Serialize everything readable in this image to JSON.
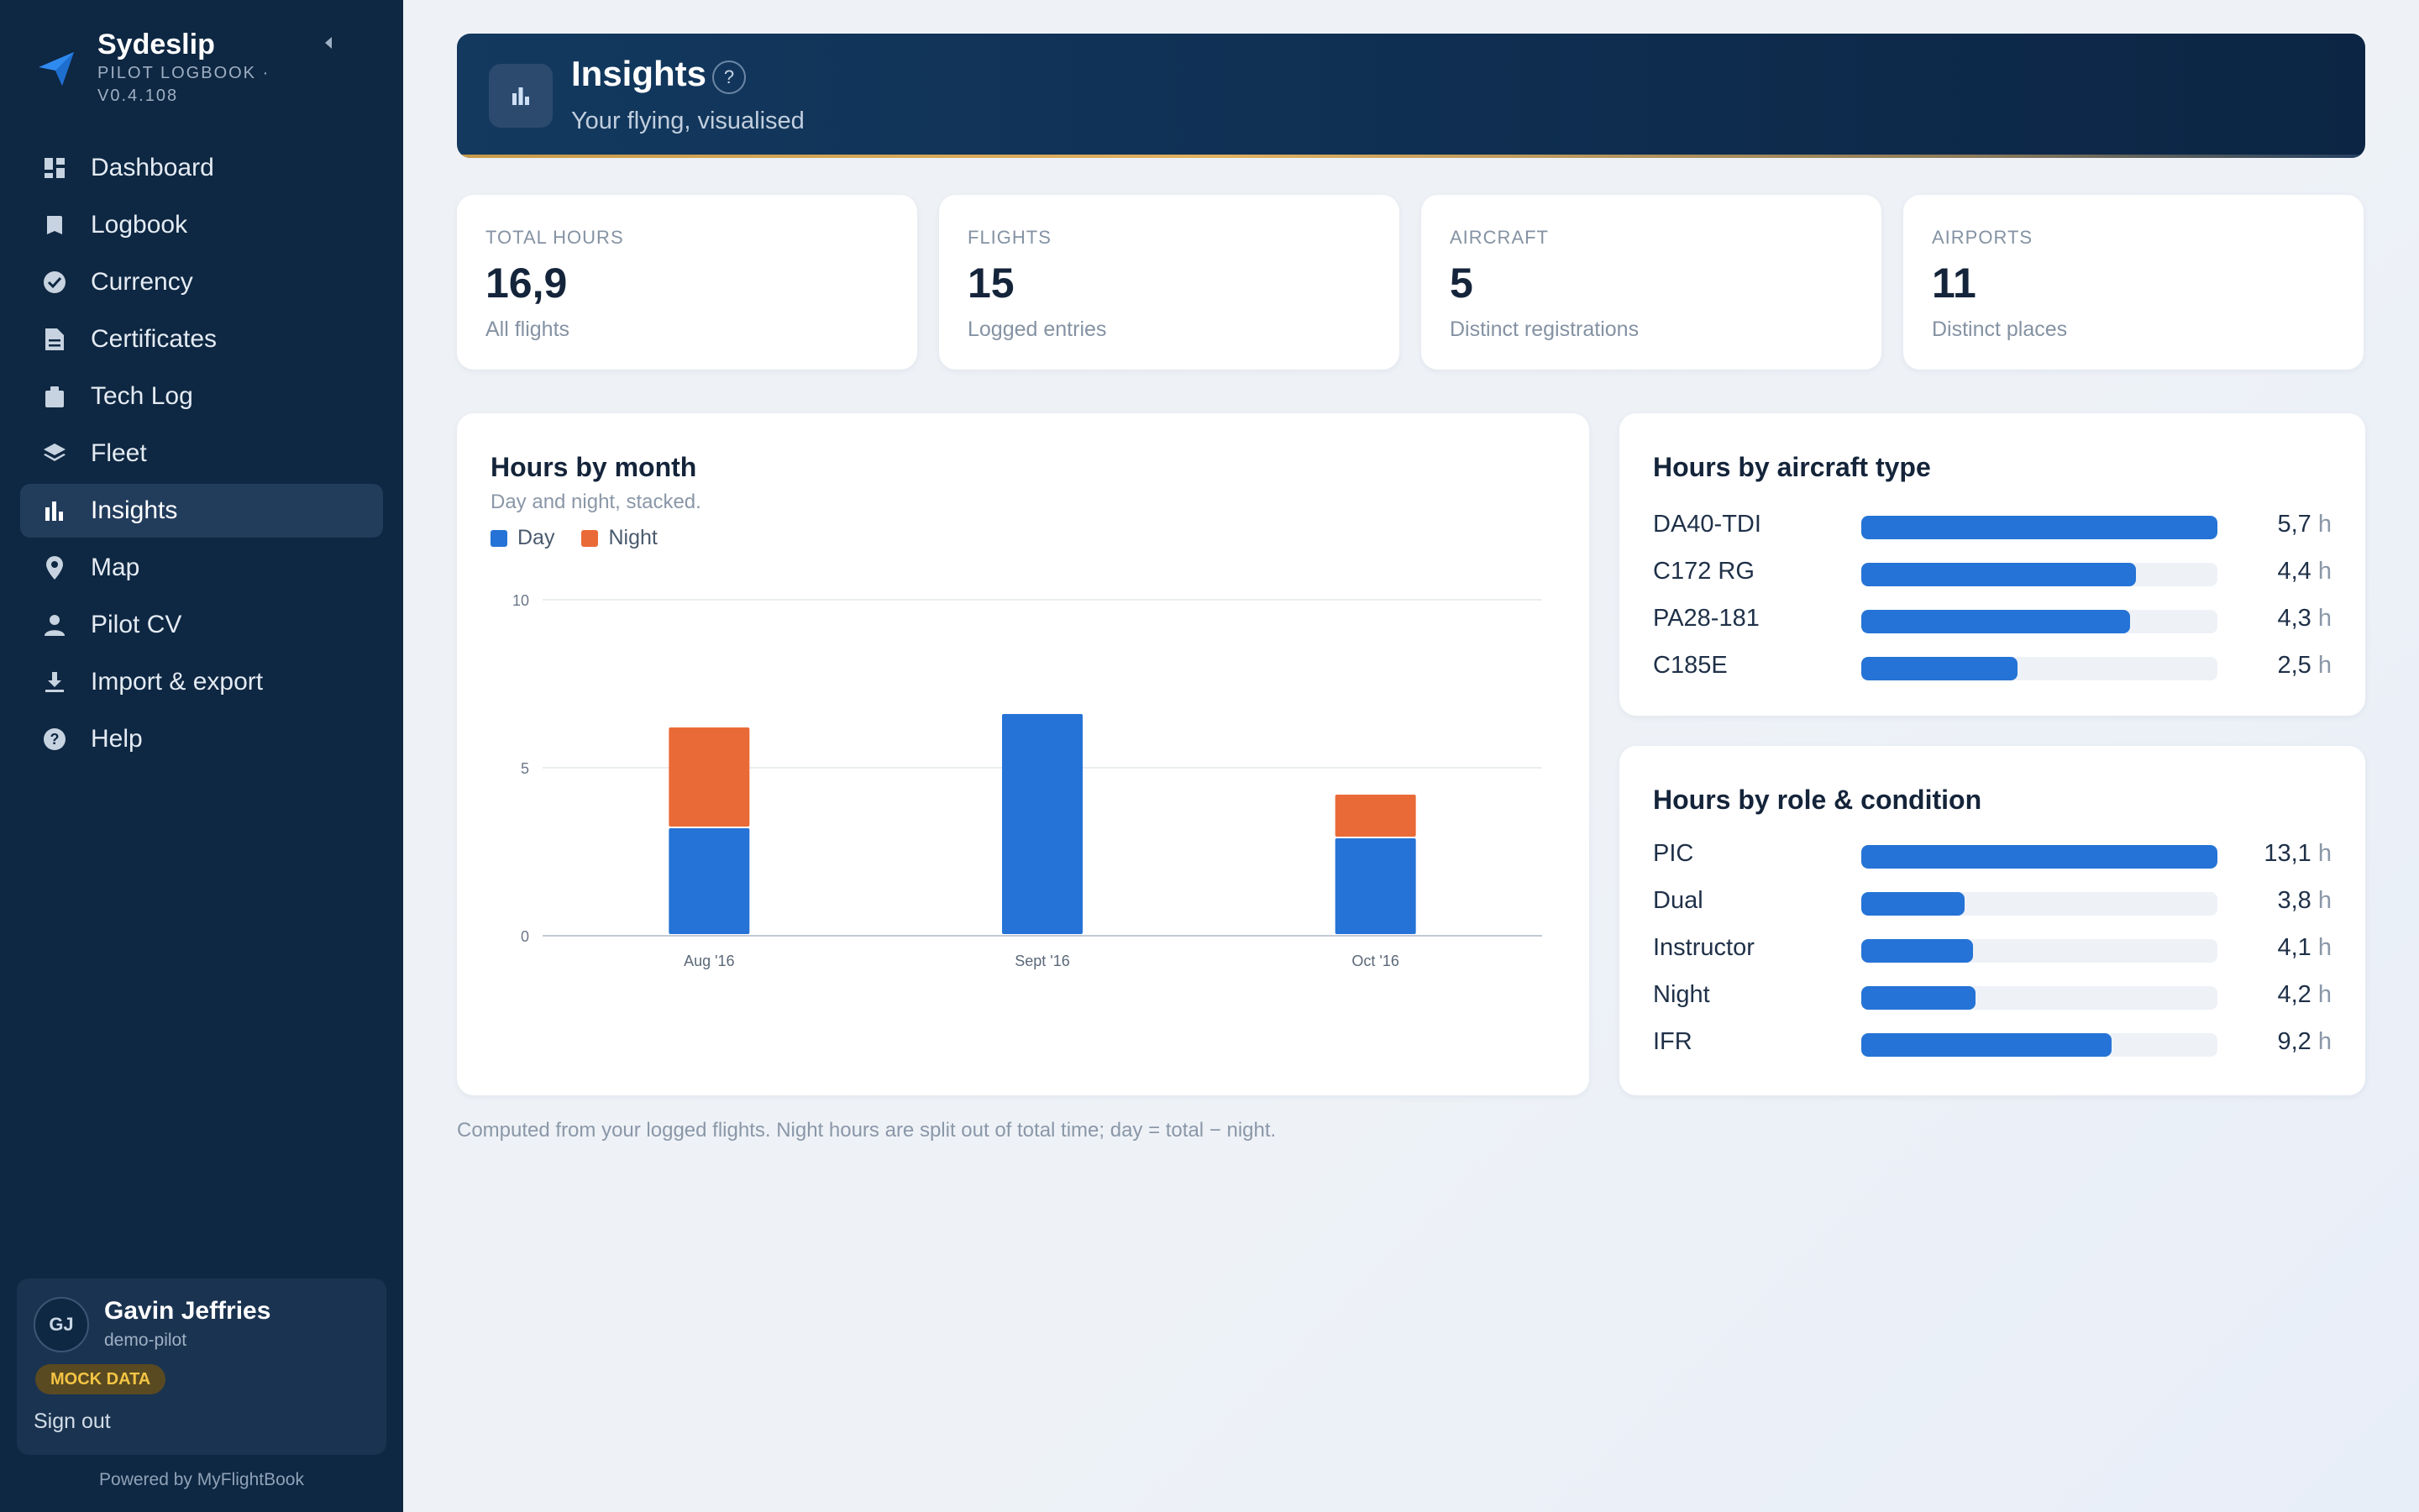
{
  "app": {
    "name": "Sydeslip",
    "subtitle": "PILOT LOGBOOK · V0.4.108",
    "powered_by": "Powered by MyFlightBook"
  },
  "nav": {
    "items": [
      {
        "label": "Dashboard",
        "icon": "dashboard-icon",
        "active": false
      },
      {
        "label": "Logbook",
        "icon": "book-icon",
        "active": false
      },
      {
        "label": "Currency",
        "icon": "check-circle-icon",
        "active": false
      },
      {
        "label": "Certificates",
        "icon": "document-icon",
        "active": false
      },
      {
        "label": "Tech Log",
        "icon": "clipboard-icon",
        "active": false
      },
      {
        "label": "Fleet",
        "icon": "layers-icon",
        "active": false
      },
      {
        "label": "Insights",
        "icon": "bar-chart-icon",
        "active": true
      },
      {
        "label": "Map",
        "icon": "map-pin-icon",
        "active": false
      },
      {
        "label": "Pilot CV",
        "icon": "person-icon",
        "active": false
      },
      {
        "label": "Import & export",
        "icon": "download-icon",
        "active": false
      },
      {
        "label": "Help",
        "icon": "help-circle-icon",
        "active": false
      }
    ]
  },
  "user": {
    "initials": "GJ",
    "name": "Gavin Jeffries",
    "handle": "demo-pilot",
    "badge": "MOCK DATA",
    "sign_out": "Sign out"
  },
  "header": {
    "title": "Insights",
    "help": "?",
    "subtitle": "Your flying, visualised"
  },
  "stats": [
    {
      "label": "TOTAL HOURS",
      "value": "16,9",
      "sub": "All flights"
    },
    {
      "label": "FLIGHTS",
      "value": "15",
      "sub": "Logged entries"
    },
    {
      "label": "AIRCRAFT",
      "value": "5",
      "sub": "Distinct registrations"
    },
    {
      "label": "AIRPORTS",
      "value": "11",
      "sub": "Distinct places"
    }
  ],
  "month_chart": {
    "title": "Hours by month",
    "subtitle": "Day and night, stacked."
  },
  "chart_data": [
    {
      "type": "bar",
      "stacked": true,
      "title": "Hours by month",
      "subtitle": "Day and night, stacked.",
      "categories": [
        "Aug '16",
        "Sept '16",
        "Oct '16"
      ],
      "series": [
        {
          "name": "Day",
          "color": "#2573d6",
          "values": [
            3.2,
            6.6,
            2.9
          ]
        },
        {
          "name": "Night",
          "color": "#ea6a37",
          "values": [
            3.0,
            0,
            1.3
          ]
        }
      ],
      "ylim": [
        0,
        10
      ],
      "yticks": [
        "0",
        "5",
        "10"
      ],
      "grid": true,
      "legend": "top-left"
    },
    {
      "type": "bar",
      "orientation": "horizontal",
      "title": "Hours by aircraft type",
      "unit": "h",
      "categories": [
        "DA40-TDI",
        "C172 RG",
        "PA28-181",
        "C185E"
      ],
      "values": [
        5.7,
        4.4,
        4.3,
        2.5
      ],
      "labels": [
        "5,7",
        "4,4",
        "4,3",
        "2,5"
      ],
      "xlim": [
        0,
        5.7
      ]
    },
    {
      "type": "bar",
      "orientation": "horizontal",
      "title": "Hours by role & condition",
      "unit": "h",
      "categories": [
        "PIC",
        "Dual",
        "Instructor",
        "Night",
        "IFR"
      ],
      "values": [
        13.1,
        3.8,
        4.1,
        4.2,
        9.2
      ],
      "labels": [
        "13,1",
        "3,8",
        "4,1",
        "4,2",
        "9,2"
      ],
      "xlim": [
        0,
        13.1
      ]
    }
  ],
  "footnote": "Computed from your logged flights. Night hours are split out of total time; day = total − night.",
  "colors": {
    "sidebar": "#0e2742",
    "accent": "#2573d6",
    "night": "#ea6a37",
    "badge": "#f4c544"
  }
}
